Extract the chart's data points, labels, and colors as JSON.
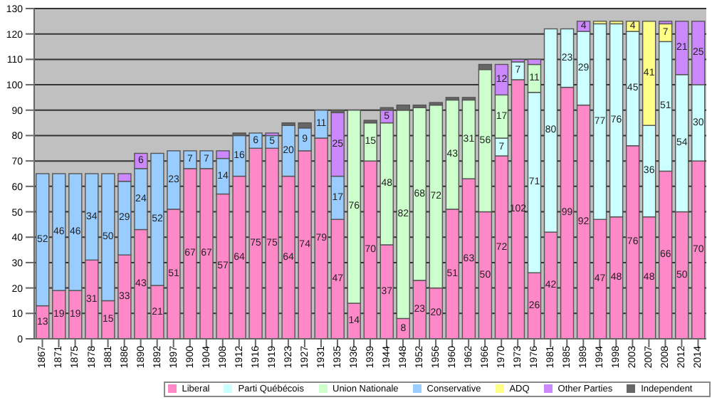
{
  "chart_data": {
    "type": "bar",
    "stacked": true,
    "categories": [
      "1867",
      "1871",
      "1875",
      "1878",
      "1881",
      "1886",
      "1890",
      "1892",
      "1897",
      "1900",
      "1904",
      "1908",
      "1912",
      "1916",
      "1919",
      "1923",
      "1927",
      "1931",
      "1935",
      "1936",
      "1939",
      "1944",
      "1948",
      "1952",
      "1956",
      "1960",
      "1962",
      "1966",
      "1970",
      "1973",
      "1976",
      "1981",
      "1985",
      "1989",
      "1994",
      "1998",
      "2003",
      "2007",
      "2008",
      "2012",
      "2014"
    ],
    "series": [
      {
        "name": "Liberal",
        "color": "#ff88c8",
        "values": [
          13,
          19,
          19,
          31,
          15,
          33,
          43,
          21,
          51,
          67,
          67,
          57,
          64,
          75,
          75,
          64,
          74,
          79,
          47,
          14,
          70,
          37,
          8,
          23,
          20,
          51,
          63,
          50,
          72,
          102,
          26,
          42,
          99,
          92,
          47,
          48,
          76,
          48,
          66,
          50,
          70
        ],
        "value_labels": [
          "13",
          "19",
          "19",
          "31",
          "15",
          "33",
          "43",
          "21",
          "51",
          "67",
          "67",
          "57",
          "64",
          "75",
          "75",
          "64",
          "74",
          "79",
          "47",
          "14",
          "70",
          "37",
          "8",
          "23",
          "20",
          "51",
          "63",
          "50",
          "72",
          "102",
          "26",
          "42",
          "99",
          "92",
          "47",
          "48",
          "76",
          "48",
          "66",
          "50",
          "70"
        ]
      },
      {
        "name": "Parti Québécois",
        "color": "#ccffff",
        "values": [
          null,
          null,
          null,
          null,
          null,
          null,
          null,
          null,
          null,
          null,
          null,
          null,
          null,
          null,
          null,
          null,
          null,
          null,
          null,
          null,
          null,
          null,
          null,
          null,
          null,
          null,
          null,
          null,
          7,
          7,
          71,
          80,
          23,
          29,
          77,
          76,
          45,
          36,
          51,
          54,
          30
        ],
        "value_labels": [
          null,
          null,
          null,
          null,
          null,
          null,
          null,
          null,
          null,
          null,
          null,
          null,
          null,
          null,
          null,
          null,
          null,
          null,
          null,
          null,
          null,
          null,
          null,
          null,
          null,
          null,
          null,
          null,
          "7",
          "7",
          "71",
          "80",
          "23",
          "29",
          "77",
          "76",
          "45",
          "36",
          "51",
          "54",
          "30"
        ]
      },
      {
        "name": "Union Nationale",
        "color": "#ccffcc",
        "values": [
          null,
          null,
          null,
          null,
          null,
          null,
          null,
          null,
          null,
          null,
          null,
          null,
          null,
          null,
          null,
          null,
          null,
          null,
          null,
          76,
          15,
          48,
          82,
          68,
          72,
          43,
          31,
          56,
          17,
          null,
          11,
          null,
          null,
          null,
          null,
          null,
          null,
          null,
          null,
          null,
          null
        ],
        "value_labels": [
          null,
          null,
          null,
          null,
          null,
          null,
          null,
          null,
          null,
          null,
          null,
          null,
          null,
          null,
          null,
          null,
          null,
          null,
          null,
          "76",
          "15",
          "48",
          "82",
          "68",
          "72",
          "43",
          "31",
          "56",
          "17",
          null,
          "11",
          null,
          null,
          null,
          null,
          null,
          null,
          null,
          null,
          null,
          null
        ]
      },
      {
        "name": "Conservative",
        "color": "#99ccff",
        "values": [
          52,
          46,
          46,
          34,
          50,
          29,
          24,
          52,
          23,
          7,
          7,
          14,
          16,
          6,
          5,
          20,
          9,
          11,
          17,
          null,
          null,
          null,
          null,
          null,
          null,
          null,
          null,
          null,
          null,
          null,
          null,
          null,
          null,
          null,
          null,
          null,
          null,
          null,
          null,
          null,
          null
        ],
        "value_labels": [
          "52",
          "46",
          "46",
          "34",
          "50",
          "29",
          "24",
          "52",
          "23",
          "7",
          "7",
          "14",
          "16",
          "6",
          "5",
          "20",
          "9",
          "11",
          "17",
          null,
          null,
          null,
          null,
          null,
          null,
          null,
          null,
          null,
          null,
          null,
          null,
          null,
          null,
          null,
          null,
          null,
          null,
          null,
          null,
          null,
          null
        ]
      },
      {
        "name": "ADQ",
        "color": "#ffff88",
        "values": [
          null,
          null,
          null,
          null,
          null,
          null,
          null,
          null,
          null,
          null,
          null,
          null,
          null,
          null,
          null,
          null,
          null,
          null,
          null,
          null,
          null,
          null,
          null,
          null,
          null,
          null,
          null,
          null,
          null,
          null,
          null,
          null,
          null,
          null,
          1,
          1,
          4,
          41,
          7,
          null,
          null
        ],
        "value_labels": [
          null,
          null,
          null,
          null,
          null,
          null,
          null,
          null,
          null,
          null,
          null,
          null,
          null,
          null,
          null,
          null,
          null,
          null,
          null,
          null,
          null,
          null,
          null,
          null,
          null,
          null,
          null,
          null,
          null,
          null,
          null,
          null,
          null,
          null,
          null,
          null,
          "4",
          "41",
          "7",
          null,
          null
        ]
      },
      {
        "name": "Other Parties",
        "color": "#cc88ff",
        "values": [
          null,
          null,
          null,
          null,
          null,
          3,
          6,
          null,
          null,
          null,
          null,
          3,
          null,
          null,
          1,
          null,
          null,
          null,
          25,
          null,
          null,
          5,
          null,
          null,
          null,
          null,
          null,
          null,
          12,
          1,
          2,
          null,
          null,
          4,
          null,
          null,
          null,
          null,
          1,
          21,
          25
        ],
        "value_labels": [
          null,
          null,
          null,
          null,
          null,
          null,
          "6",
          null,
          null,
          null,
          null,
          null,
          null,
          null,
          null,
          null,
          null,
          null,
          "25",
          null,
          null,
          "5",
          null,
          null,
          null,
          null,
          null,
          null,
          "12",
          null,
          null,
          null,
          null,
          "4",
          null,
          null,
          null,
          null,
          null,
          "21",
          "25"
        ]
      },
      {
        "name": "Independent",
        "color": "#666666",
        "values": [
          null,
          null,
          null,
          null,
          null,
          null,
          null,
          null,
          null,
          null,
          null,
          null,
          1,
          null,
          null,
          1,
          2,
          null,
          1,
          null,
          1,
          1,
          2,
          1,
          1,
          1,
          1,
          2,
          null,
          null,
          null,
          null,
          null,
          null,
          null,
          null,
          null,
          null,
          null,
          null,
          null
        ]
      }
    ],
    "ylim": [
      0,
      130
    ],
    "yticks": [
      0,
      10,
      20,
      30,
      40,
      50,
      60,
      70,
      80,
      90,
      100,
      110,
      120,
      130
    ],
    "grid": "y",
    "legend": "bottom"
  }
}
